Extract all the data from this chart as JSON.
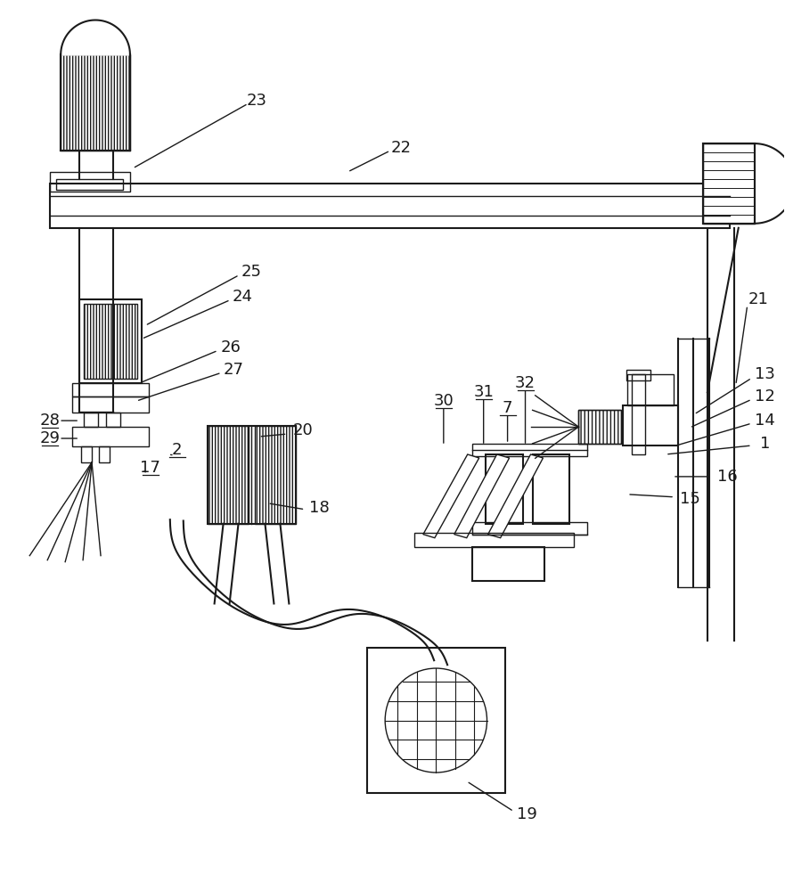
{
  "bg": "#ffffff",
  "lc": "#1a1a1a",
  "lw": 1.5,
  "lw2": 1.0,
  "fs": 12,
  "xlim": [
    0,
    881
  ],
  "ylim": [
    0,
    1000
  ]
}
